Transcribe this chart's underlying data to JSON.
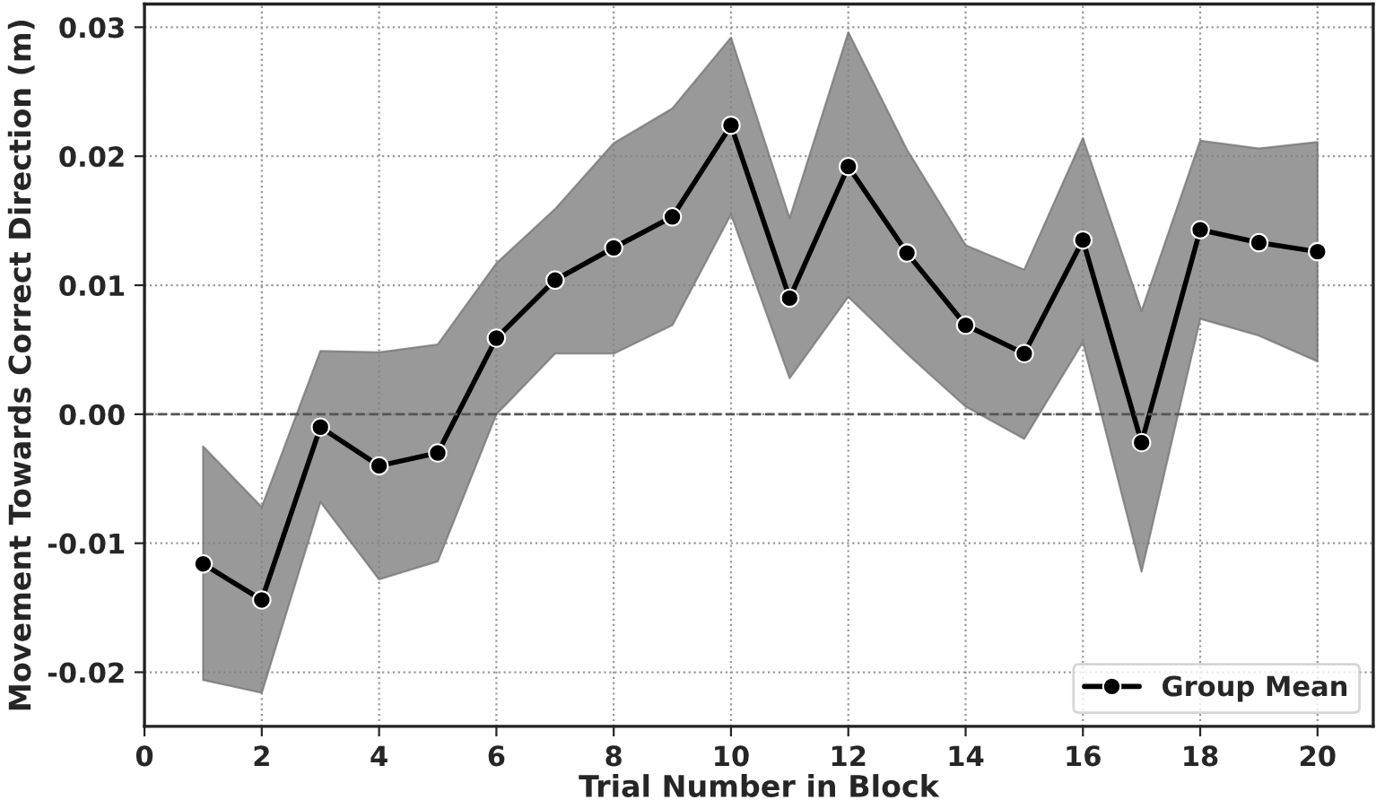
{
  "chart_data": {
    "type": "line",
    "xlabel": "Trial Number in Block",
    "ylabel": "Movement Towards Correct Direction (m)",
    "x": [
      1,
      2,
      3,
      4,
      5,
      6,
      7,
      8,
      9,
      10,
      11,
      12,
      13,
      14,
      15,
      16,
      17,
      18,
      19,
      20
    ],
    "series": [
      {
        "name": "Group Mean",
        "color": "#000000",
        "values": [
          -0.0116,
          -0.0144,
          -0.001,
          -0.004,
          -0.003,
          0.0059,
          0.0104,
          0.0129,
          0.0153,
          0.0224,
          0.009,
          0.0192,
          0.0125,
          0.0069,
          0.0047,
          0.0135,
          -0.0022,
          0.0143,
          0.0133,
          0.0126
        ],
        "lower": [
          -0.0206,
          -0.0216,
          -0.0068,
          -0.0128,
          -0.0114,
          0.0,
          0.0047,
          0.0047,
          0.0069,
          0.0155,
          0.0028,
          0.0091,
          0.0047,
          0.0006,
          -0.0019,
          0.0056,
          -0.0122,
          0.0074,
          0.0061,
          0.0041
        ],
        "upper": [
          -0.0025,
          -0.0072,
          0.0049,
          0.0048,
          0.0054,
          0.0117,
          0.0159,
          0.021,
          0.0237,
          0.0292,
          0.0152,
          0.0296,
          0.0205,
          0.0131,
          0.0112,
          0.0214,
          0.008,
          0.0212,
          0.0206,
          0.0211
        ]
      }
    ],
    "xlim": [
      0,
      20.95
    ],
    "ylim": [
      -0.0242,
      0.0318
    ],
    "xticks": [
      0,
      2,
      4,
      6,
      8,
      10,
      12,
      14,
      16,
      18,
      20
    ],
    "yticks": [
      {
        "value": -0.02,
        "label": "-0.02"
      },
      {
        "value": -0.01,
        "label": "-0.01"
      },
      {
        "value": 0,
        "label": "0.00"
      },
      {
        "value": 0.01,
        "label": "0.01"
      },
      {
        "value": 0.02,
        "label": "0.02"
      },
      {
        "value": 0.03,
        "label": "0.03"
      }
    ],
    "ref_lines": [
      {
        "axis": "y",
        "value": 0,
        "label": null,
        "color": "#555555",
        "line_style": "dashed"
      }
    ],
    "grid": true,
    "legend": "lower right",
    "marker": "circle",
    "line_style": "solid"
  }
}
